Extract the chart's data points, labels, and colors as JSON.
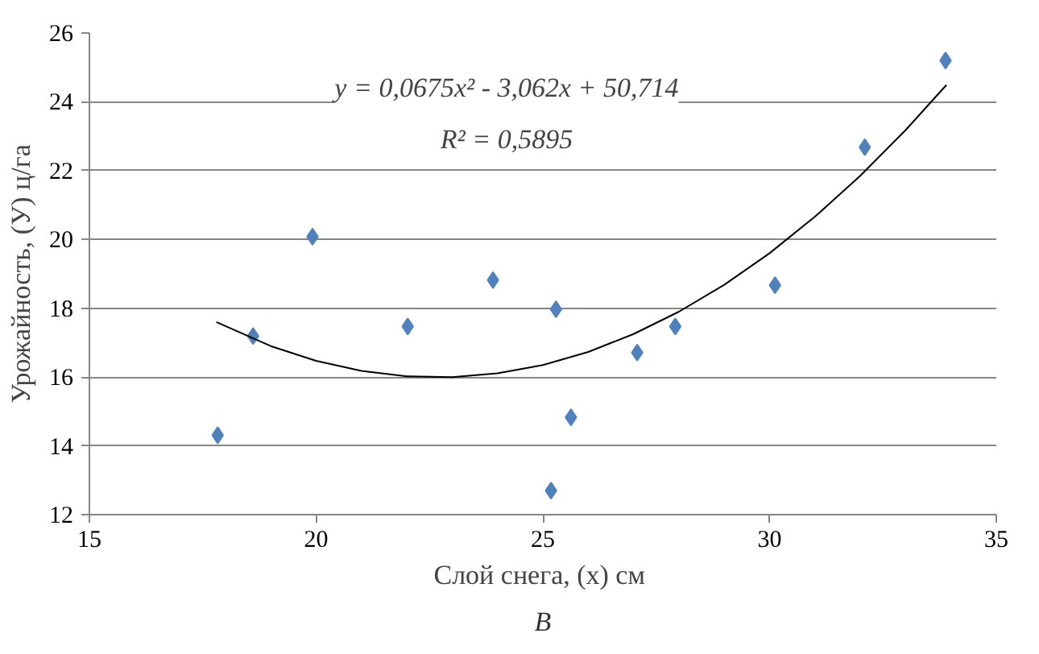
{
  "chart_data": {
    "type": "scatter",
    "xlabel": "Слой снега, (x)  см",
    "ylabel": "Урожайность, (У) ц/га",
    "annotations": [
      "y = 0,0675x² - 3,062x + 50,714",
      "R² = 0,5895",
      "В"
    ],
    "x": [
      17.83,
      18.61,
      19.92,
      22.02,
      23.9,
      25.29,
      25.18,
      25.62,
      27.08,
      27.92,
      30.12,
      32.1,
      33.88
    ],
    "series": [
      {
        "color": "#4f81bd",
        "marker": "diamond",
        "values": [
          14.31,
          17.19,
          20.08,
          17.47,
          18.82,
          17.97,
          12.7,
          14.83,
          16.71,
          17.47,
          18.67,
          22.68,
          25.2
        ]
      },
      {
        "type": "line",
        "color": "#000000",
        "x": [
          17.8,
          19,
          20,
          21,
          22,
          23,
          24,
          25,
          26,
          27,
          28,
          29,
          30,
          31,
          32,
          33,
          33.9
        ],
        "values": [
          17.6,
          16.9,
          16.47,
          16.18,
          16.02,
          16.0,
          16.11,
          16.35,
          16.73,
          17.25,
          17.9,
          18.68,
          19.6,
          20.66,
          21.85,
          23.18,
          24.49
        ]
      }
    ],
    "xlim": [
      15,
      35
    ],
    "xticks": [
      15,
      20,
      25,
      30,
      35
    ],
    "ylim": [
      12,
      26
    ],
    "yticks": [
      12,
      14,
      16,
      18,
      20,
      22,
      24,
      26
    ],
    "grid": "y"
  }
}
